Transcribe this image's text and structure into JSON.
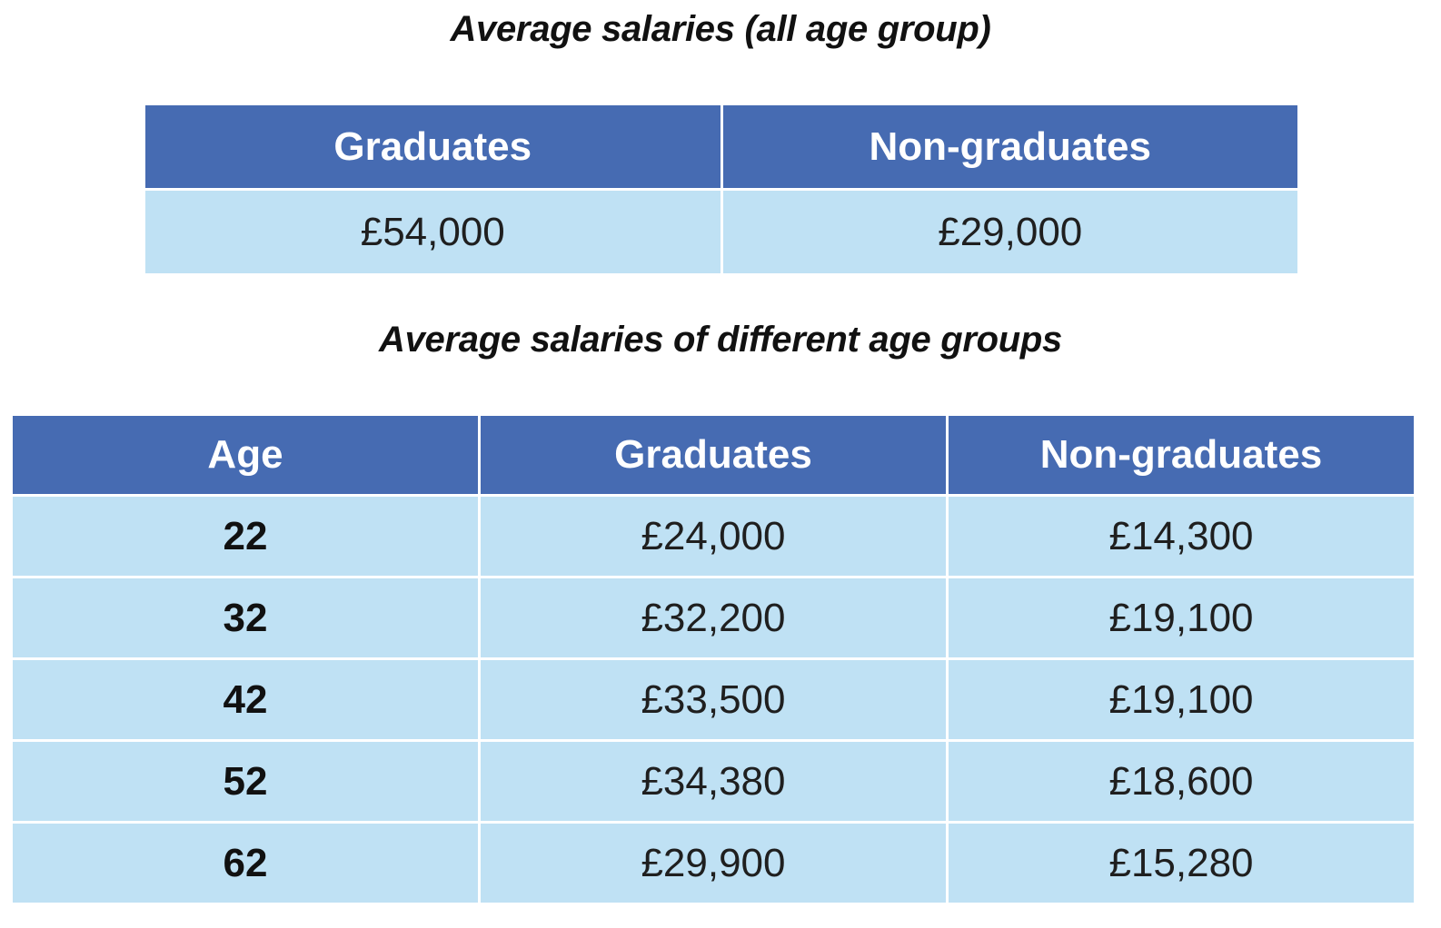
{
  "chart_data": [
    {
      "type": "table",
      "title": "Average salaries (all age group)",
      "columns": [
        "Graduates",
        "Non-graduates"
      ],
      "rows": [
        [
          "£54,000",
          "£29,000"
        ]
      ]
    },
    {
      "type": "table",
      "title": "Average salaries of different age groups",
      "columns": [
        "Age",
        "Graduates",
        "Non-graduates"
      ],
      "rows": [
        [
          "22",
          "£24,000",
          "£14,300"
        ],
        [
          "32",
          "£32,200",
          "£19,100"
        ],
        [
          "42",
          "£33,500",
          "£19,100"
        ],
        [
          "52",
          "£34,380",
          "£18,600"
        ],
        [
          "62",
          "£29,900",
          "£15,280"
        ]
      ]
    }
  ],
  "colors": {
    "header_bg": "#466bb2",
    "cell_bg": "#bfe1f4",
    "header_text": "#ffffff"
  }
}
